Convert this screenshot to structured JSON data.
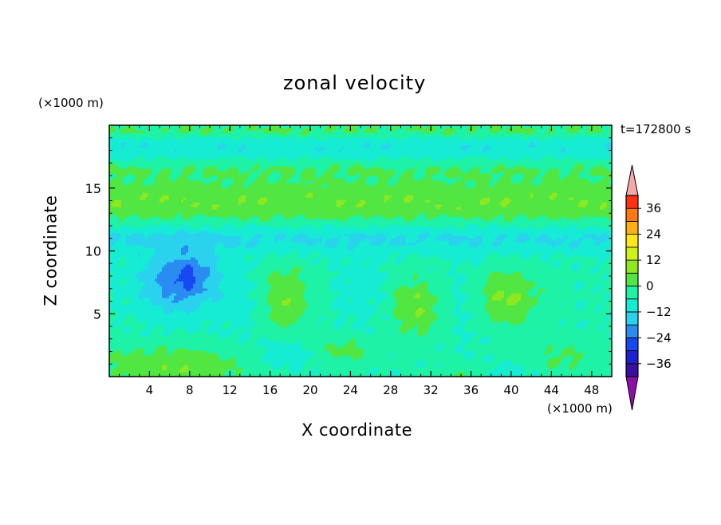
{
  "chart_data": {
    "type": "heatmap",
    "title": "zonal velocity",
    "xlabel": "X coordinate",
    "ylabel": "Z coordinate",
    "x_unit_label": "(×1000 m)",
    "y_unit_label": "(×1000 m)",
    "time_label": "t=172800 s",
    "xlim": [
      0,
      50
    ],
    "ylim": [
      0,
      20
    ],
    "x_ticks": [
      4,
      8,
      12,
      16,
      20,
      24,
      28,
      32,
      36,
      40,
      44,
      48
    ],
    "y_ticks": [
      5,
      10,
      15
    ],
    "colorbar": {
      "levels": [
        -42,
        -36,
        -30,
        -24,
        -18,
        -12,
        -6,
        0,
        6,
        12,
        18,
        24,
        30,
        36,
        42
      ],
      "tick_values": [
        -36,
        -24,
        -12,
        0,
        12,
        24,
        36
      ],
      "tick_labels": [
        "−36",
        "−24",
        "−12",
        "0",
        "12",
        "24",
        "36"
      ],
      "under_color": "#8a10a8",
      "over_color": "#f4a9a9",
      "colors": [
        "#3a10a0",
        "#1d1fd0",
        "#1848f0",
        "#2a8cf0",
        "#2ad2ee",
        "#16ecd4",
        "#1ef2a6",
        "#52e642",
        "#8ee820",
        "#cff21c",
        "#ffe81a",
        "#ffb012",
        "#ff7812",
        "#ff3010"
      ]
    },
    "field_description_grid": {
      "x_samples": [
        0,
        2,
        4,
        6,
        8,
        10,
        12,
        14,
        16,
        18,
        20,
        22,
        24,
        26,
        28,
        30,
        32,
        34,
        36,
        38,
        40,
        42,
        44,
        46,
        48,
        50
      ],
      "z_samples": [
        0,
        1,
        2,
        3,
        4,
        5,
        6,
        7,
        8,
        9,
        10,
        11,
        12,
        13,
        14,
        15,
        16,
        17,
        18,
        19,
        20
      ]
    }
  }
}
